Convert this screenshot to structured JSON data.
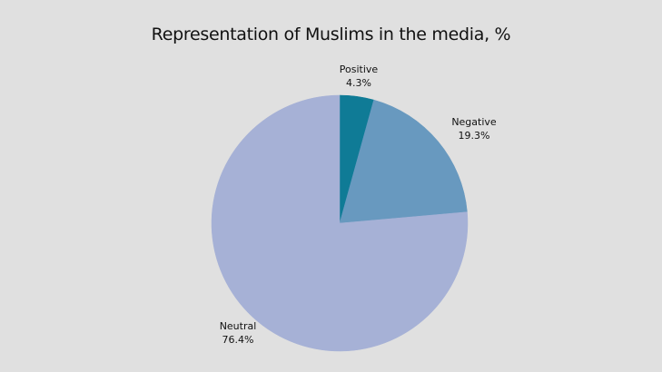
{
  "chart_data": {
    "type": "pie",
    "title": "Representation of Muslims in the media, %",
    "slices": [
      {
        "label": "Positive",
        "value": 4.3,
        "display": "4.3%",
        "color": "#0f7b96"
      },
      {
        "label": "Negative",
        "value": 19.3,
        "display": "19.3%",
        "color": "#6899bf"
      },
      {
        "label": "Neutral",
        "value": 76.4,
        "display": "76.4%",
        "color": "#a6b1d6"
      }
    ],
    "start_angle_deg": 0,
    "direction": "clockwise",
    "background": "#e0e0e0"
  }
}
